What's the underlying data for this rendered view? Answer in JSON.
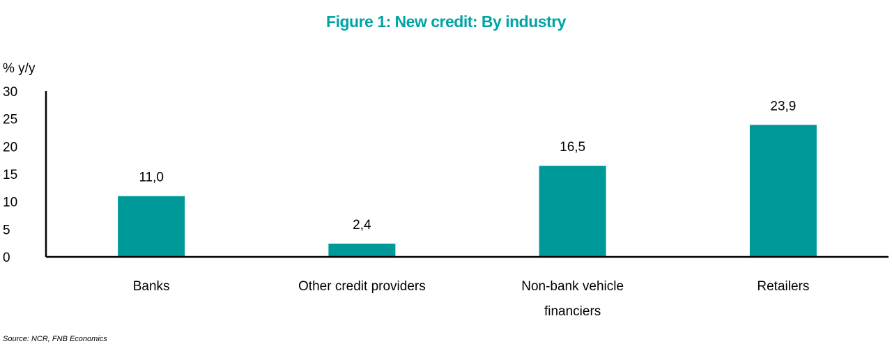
{
  "chart_data": {
    "type": "bar",
    "title": "Figure 1: New credit: By industry",
    "ylabel": "% y/y",
    "xlabel": "",
    "categories": [
      "Banks",
      "Other credit providers",
      "Non-bank vehicle financiers",
      "Retailers"
    ],
    "category_lines": [
      [
        "Banks"
      ],
      [
        "Other credit providers"
      ],
      [
        "Non-bank vehicle",
        "financiers"
      ],
      [
        "Retailers"
      ]
    ],
    "values": [
      11.0,
      2.4,
      16.5,
      23.9
    ],
    "data_labels": [
      "11,0",
      "2,4",
      "16,5",
      "23,9"
    ],
    "ylim": [
      0,
      30
    ],
    "yticks": [
      0,
      5,
      10,
      15,
      20,
      25,
      30
    ],
    "grid": false,
    "bar_color": "#009999",
    "title_color": "#00A3A6"
  },
  "source": "Source: NCR, FNB Economics"
}
